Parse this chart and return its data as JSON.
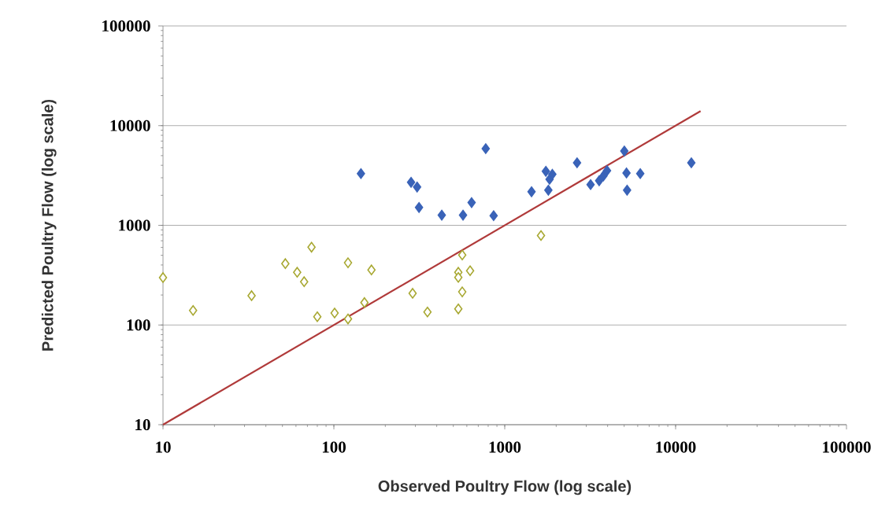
{
  "chart_data": {
    "type": "scatter",
    "xlabel": "Observed Poultry Flow (log scale)",
    "ylabel": "Predicted Poultry Flow (log scale)",
    "log": "xy",
    "grid": "y",
    "marker": "diamond",
    "xlim": [
      10,
      100000
    ],
    "ylim": [
      10,
      100000
    ],
    "xticks": [
      10,
      100,
      1000,
      10000,
      100000
    ],
    "yticks": [
      10,
      100,
      1000,
      10000,
      100000
    ],
    "series": [
      {
        "color": "#3a63b8",
        "x": [
          144,
          283,
          307,
          315,
          428,
          570,
          640,
          774,
          861,
          1435,
          1740,
          1830,
          1800,
          1900,
          2650,
          3180,
          3570,
          3780,
          3970,
          5010,
          5160,
          5200,
          6210,
          12360
        ],
        "values": [
          3300,
          2700,
          2420,
          1510,
          1265,
          1265,
          1690,
          5880,
          1250,
          2170,
          3480,
          2900,
          2250,
          3250,
          4240,
          2560,
          2800,
          3130,
          3540,
          5560,
          3350,
          2250,
          3300,
          4240
        ]
      },
      {
        "color": "#a8a832",
        "x": [
          10,
          15,
          33,
          74,
          52,
          61,
          67,
          80,
          101,
          121,
          151,
          121,
          166,
          289,
          353,
          564,
          535,
          627,
          564,
          535,
          535,
          1630
        ],
        "values": [
          299,
          140,
          197,
          603,
          413,
          338,
          272,
          121,
          132,
          115,
          168,
          421,
          357,
          208,
          135,
          504,
          338,
          350,
          215,
          145,
          300,
          790
        ]
      },
      {
        "type": "line",
        "color": "#b03a3a",
        "marker": "none",
        "x": [
          10,
          14000
        ],
        "values": [
          10,
          14000
        ]
      }
    ]
  }
}
